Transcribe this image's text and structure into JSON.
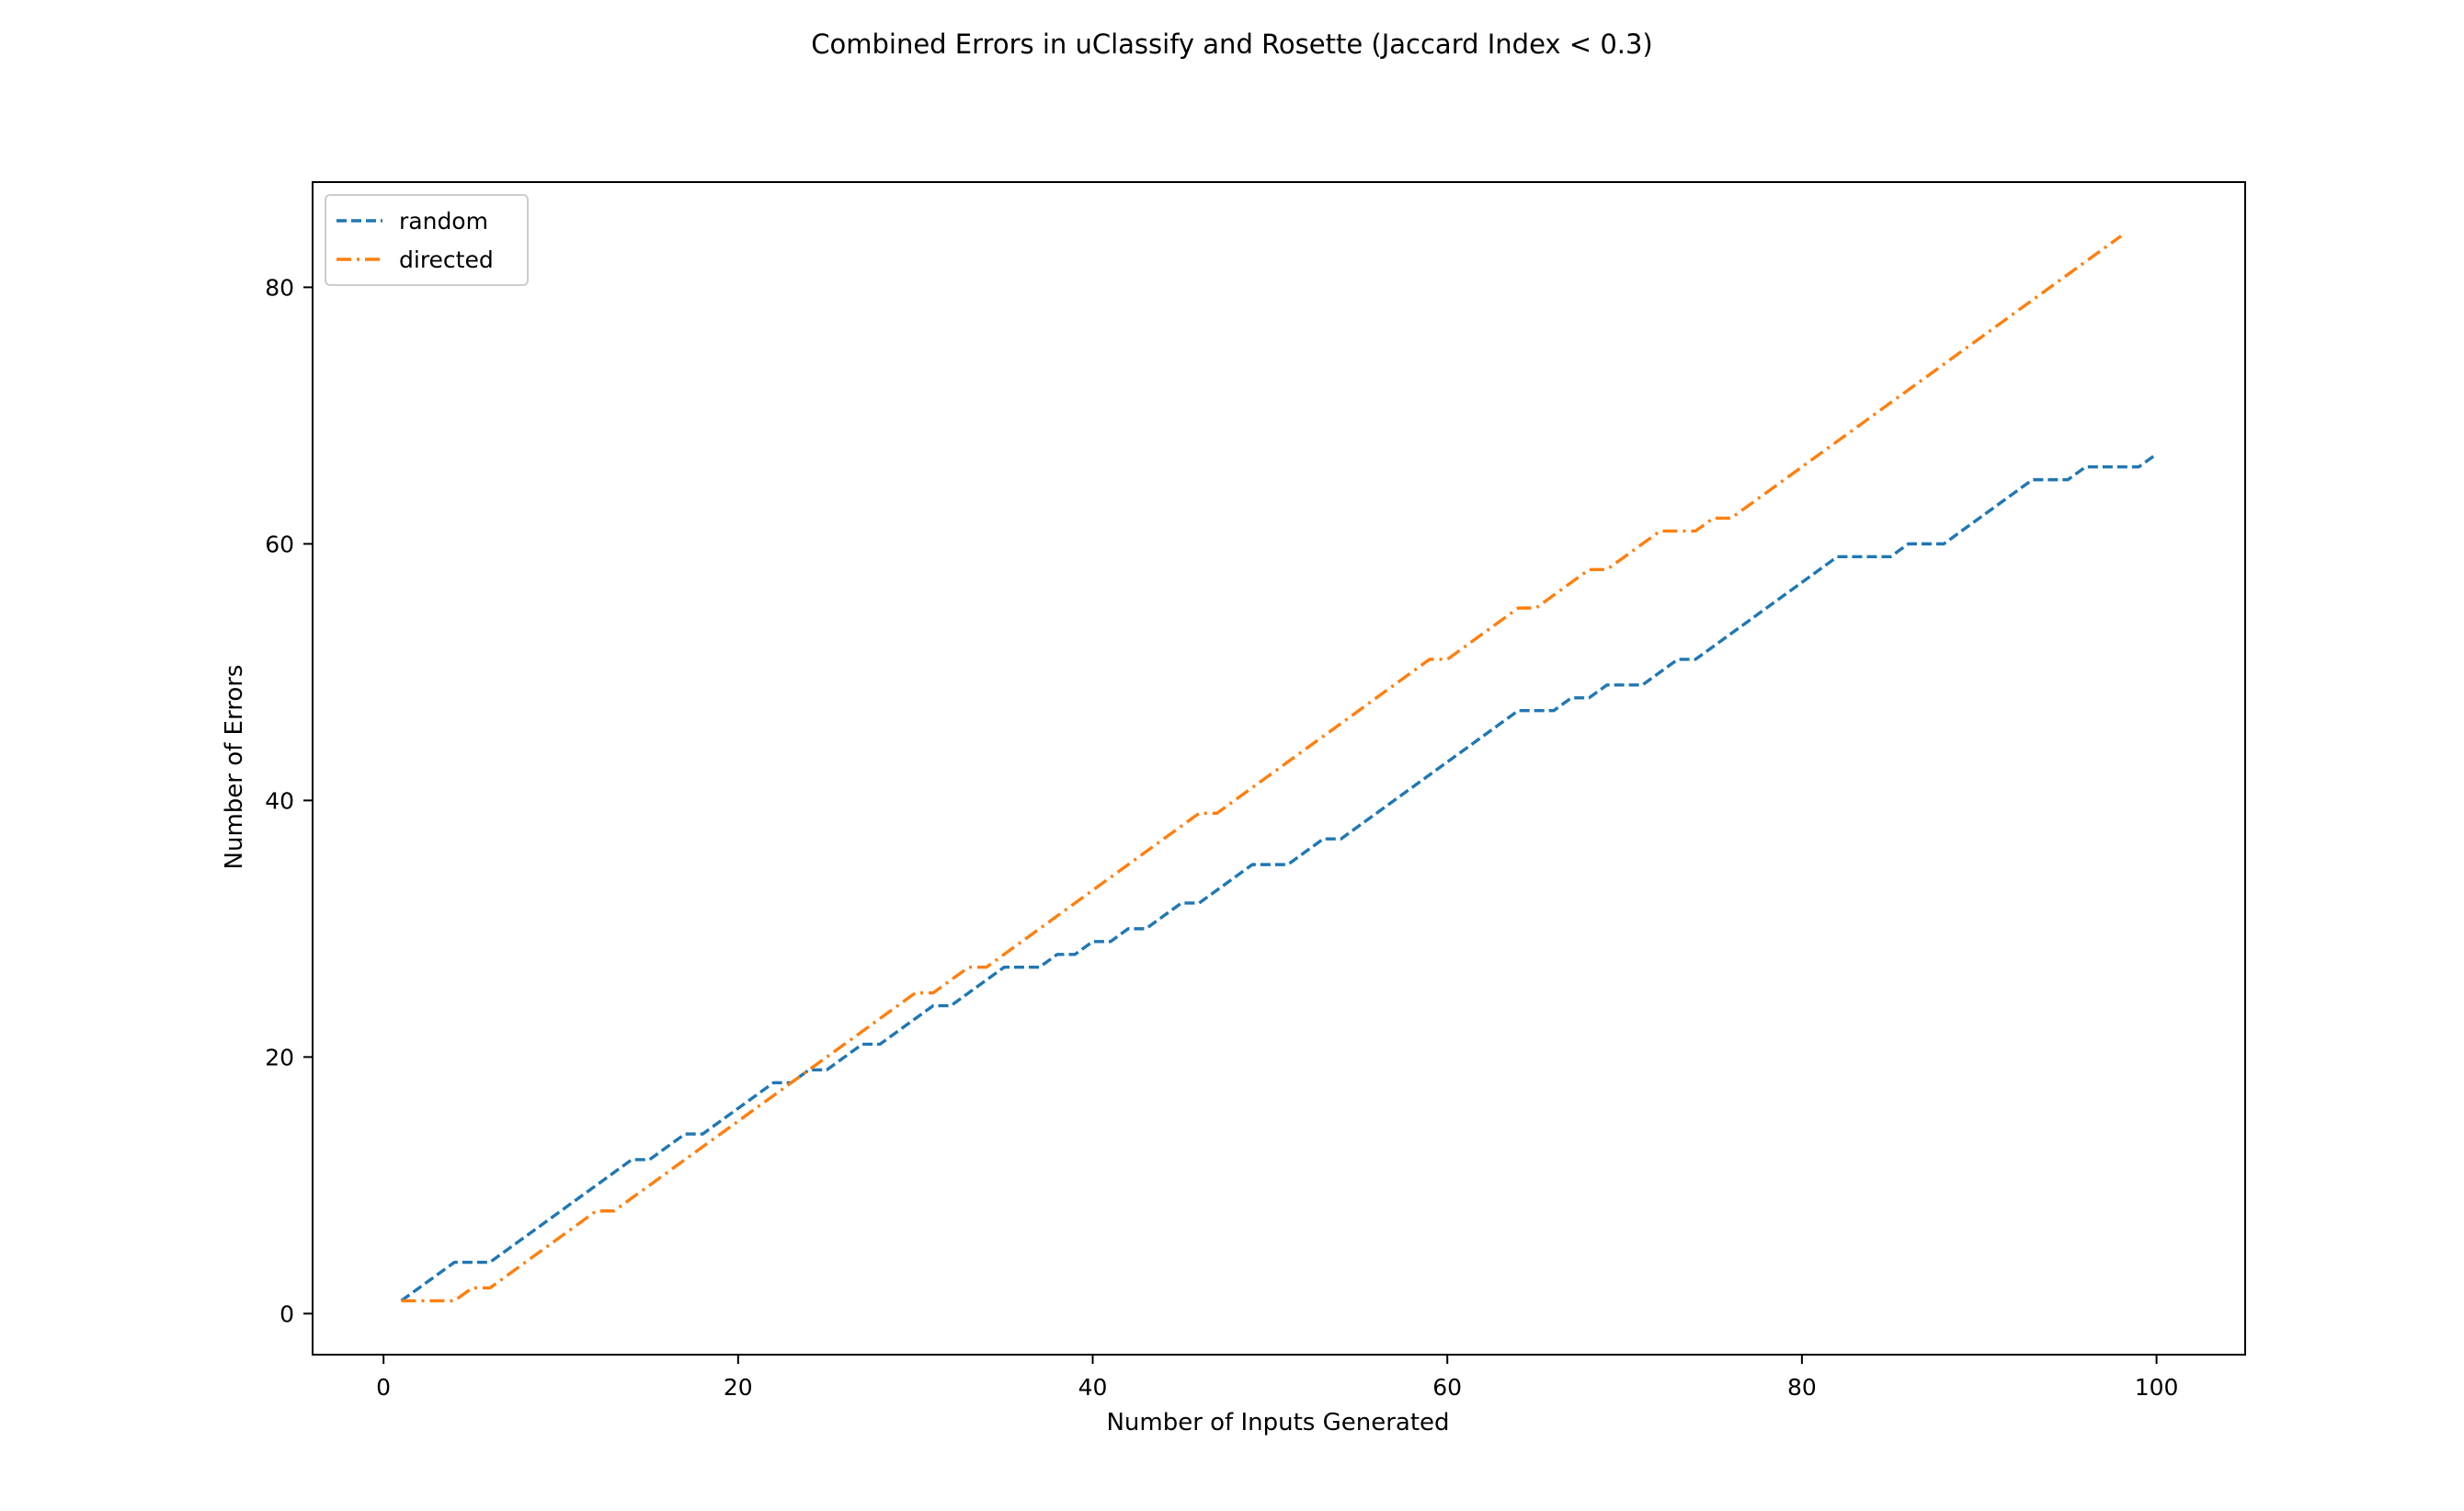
{
  "chart_data": {
    "type": "line",
    "title": "Combined Errors in uClassify and Rosette (Jaccard Index < 0.3)",
    "xlabel": "Number of Inputs Generated",
    "ylabel": "Number of Errors",
    "xlim": [
      -4,
      105
    ],
    "ylim": [
      -3.2,
      88.2
    ],
    "xticks": [
      0,
      20,
      40,
      60,
      80,
      100
    ],
    "yticks": [
      0,
      20,
      40,
      60,
      80
    ],
    "grid": false,
    "legend_position": "upper left",
    "series": [
      {
        "name": "random",
        "color": "#1f77b4",
        "style": "dashed",
        "x": [
          1,
          2,
          3,
          4,
          5,
          6,
          7,
          8,
          9,
          10,
          11,
          12,
          13,
          14,
          15,
          16,
          17,
          18,
          19,
          20,
          21,
          22,
          23,
          24,
          25,
          26,
          27,
          28,
          29,
          30,
          31,
          32,
          33,
          34,
          35,
          36,
          37,
          38,
          39,
          40,
          41,
          42,
          43,
          44,
          45,
          46,
          47,
          48,
          49,
          50,
          51,
          52,
          53,
          54,
          55,
          56,
          57,
          58,
          59,
          60,
          61,
          62,
          63,
          64,
          65,
          66,
          67,
          68,
          69,
          70,
          71,
          72,
          73,
          74,
          75,
          76,
          77,
          78,
          79,
          80,
          81,
          82,
          83,
          84,
          85,
          86,
          87,
          88,
          89,
          90,
          91,
          92,
          93,
          94,
          95,
          96,
          97,
          98,
          99,
          100
        ],
        "y": [
          1,
          2,
          3,
          4,
          4,
          4,
          5,
          6,
          7,
          8,
          9,
          10,
          11,
          12,
          12,
          13,
          14,
          14,
          15,
          16,
          17,
          18,
          18,
          19,
          19,
          20,
          21,
          21,
          22,
          23,
          24,
          24,
          25,
          26,
          27,
          27,
          27,
          28,
          28,
          29,
          29,
          30,
          30,
          31,
          32,
          32,
          33,
          34,
          35,
          35,
          35,
          36,
          37,
          37,
          38,
          39,
          40,
          41,
          42,
          43,
          44,
          45,
          46,
          47,
          47,
          47,
          48,
          48,
          49,
          49,
          49,
          50,
          51,
          51,
          52,
          53,
          54,
          55,
          56,
          57,
          58,
          59,
          59,
          59,
          59,
          60,
          60,
          60,
          61,
          62,
          63,
          64,
          65,
          65,
          65,
          66,
          66,
          66,
          66,
          67
        ]
      },
      {
        "name": "directed",
        "color": "#ff7f0e",
        "style": "dashdot",
        "x": [
          1,
          2,
          3,
          4,
          5,
          6,
          7,
          8,
          9,
          10,
          11,
          12,
          13,
          14,
          15,
          16,
          17,
          18,
          19,
          20,
          21,
          22,
          23,
          24,
          25,
          26,
          27,
          28,
          29,
          30,
          31,
          32,
          33,
          34,
          35,
          36,
          37,
          38,
          39,
          40,
          41,
          42,
          43,
          44,
          45,
          46,
          47,
          48,
          49,
          50,
          51,
          52,
          53,
          54,
          55,
          56,
          57,
          58,
          59,
          60,
          61,
          62,
          63,
          64,
          65,
          66,
          67,
          68,
          69,
          70,
          71,
          72,
          73,
          74,
          75,
          76,
          77,
          78,
          79,
          80,
          81,
          82,
          83,
          84,
          85,
          86,
          87,
          88,
          89,
          90,
          91,
          92,
          93,
          94,
          95,
          96,
          97,
          98
        ],
        "y": [
          1,
          1,
          1,
          1,
          2,
          2,
          3,
          4,
          5,
          6,
          7,
          8,
          8,
          9,
          10,
          11,
          12,
          13,
          14,
          15,
          16,
          17,
          18,
          19,
          20,
          21,
          22,
          23,
          24,
          25,
          25,
          26,
          27,
          27,
          28,
          29,
          30,
          31,
          32,
          33,
          34,
          35,
          36,
          37,
          38,
          39,
          39,
          40,
          41,
          42,
          43,
          44,
          45,
          46,
          47,
          48,
          49,
          50,
          51,
          51,
          52,
          53,
          54,
          55,
          55,
          56,
          57,
          58,
          58,
          59,
          60,
          61,
          61,
          61,
          62,
          62,
          63,
          64,
          65,
          66,
          67,
          68,
          69,
          70,
          71,
          72,
          73,
          74,
          75,
          76,
          77,
          78,
          79,
          80,
          81,
          82,
          83,
          84
        ]
      }
    ]
  }
}
